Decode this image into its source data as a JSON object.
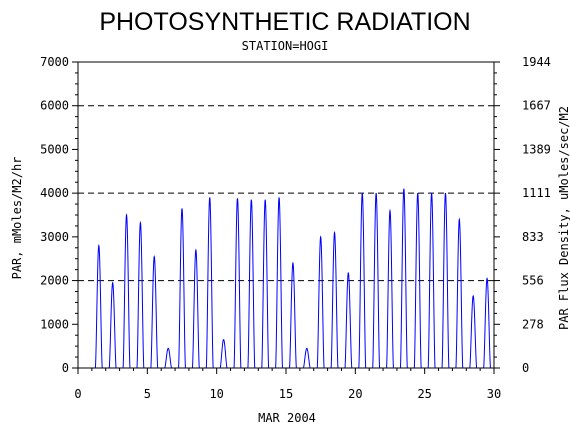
{
  "chart_data": {
    "type": "line",
    "title": "PHOTOSYNTHETIC RADIATION",
    "subtitle": "STATION=HOGI",
    "xlabel": "MAR 2004",
    "ylabel": "PAR, mMoles/M2/hr",
    "ylabel_right": "PAR Flux Density, uMoles/sec/M2",
    "xlim": [
      0,
      30
    ],
    "ylim": [
      0,
      7000
    ],
    "x_ticks": [
      "0",
      "5",
      "10",
      "15",
      "20",
      "25",
      "30"
    ],
    "y_ticks": [
      "0",
      "1000",
      "2000",
      "3000",
      "4000",
      "5000",
      "6000",
      "7000"
    ],
    "y_ticks_right": [
      "0",
      "278",
      "556",
      "833",
      "1111",
      "1389",
      "1667",
      "1944"
    ],
    "gridlines_y": [
      2000,
      4000,
      6000
    ],
    "line_color": "#0000ff",
    "series": [
      {
        "daily_peaks": [
          {
            "day": 1,
            "peaks": [
              2750,
              2850
            ]
          },
          {
            "day": 2,
            "peaks": [
              1950
            ]
          },
          {
            "day": 3,
            "peaks": [
              3500
            ]
          },
          {
            "day": 4,
            "peaks": [
              3300,
              3350
            ]
          },
          {
            "day": 5,
            "peaks": [
              2550
            ]
          },
          {
            "day": 6,
            "peaks": [
              400,
              500
            ]
          },
          {
            "day": 7,
            "peaks": [
              3650
            ]
          },
          {
            "day": 8,
            "peaks": [
              2700
            ]
          },
          {
            "day": 9,
            "peaks": [
              3900
            ]
          },
          {
            "day": 10,
            "peaks": [
              650
            ]
          },
          {
            "day": 11,
            "peaks": [
              3880
            ]
          },
          {
            "day": 12,
            "peaks": [
              3850
            ]
          },
          {
            "day": 13,
            "peaks": [
              3850
            ]
          },
          {
            "day": 14,
            "peaks": [
              3900
            ]
          },
          {
            "day": 15,
            "peaks": [
              2400
            ]
          },
          {
            "day": 16,
            "peaks": [
              450
            ]
          },
          {
            "day": 17,
            "peaks": [
              3000
            ]
          },
          {
            "day": 18,
            "peaks": [
              3100
            ]
          },
          {
            "day": 19,
            "peaks": [
              2350,
              2000
            ]
          },
          {
            "day": 20,
            "peaks": [
              4000
            ]
          },
          {
            "day": 21,
            "peaks": [
              4000
            ]
          },
          {
            "day": 22,
            "peaks": [
              3600
            ]
          },
          {
            "day": 23,
            "peaks": [
              4100
            ]
          },
          {
            "day": 24,
            "peaks": [
              4000
            ]
          },
          {
            "day": 25,
            "peaks": [
              4000
            ]
          },
          {
            "day": 26,
            "peaks": [
              4000
            ]
          },
          {
            "day": 27,
            "peaks": [
              3400
            ]
          },
          {
            "day": 28,
            "peaks": [
              1650
            ]
          },
          {
            "day": 29,
            "peaks": [
              2050
            ]
          }
        ]
      }
    ],
    "grid": false,
    "legend": "none"
  }
}
